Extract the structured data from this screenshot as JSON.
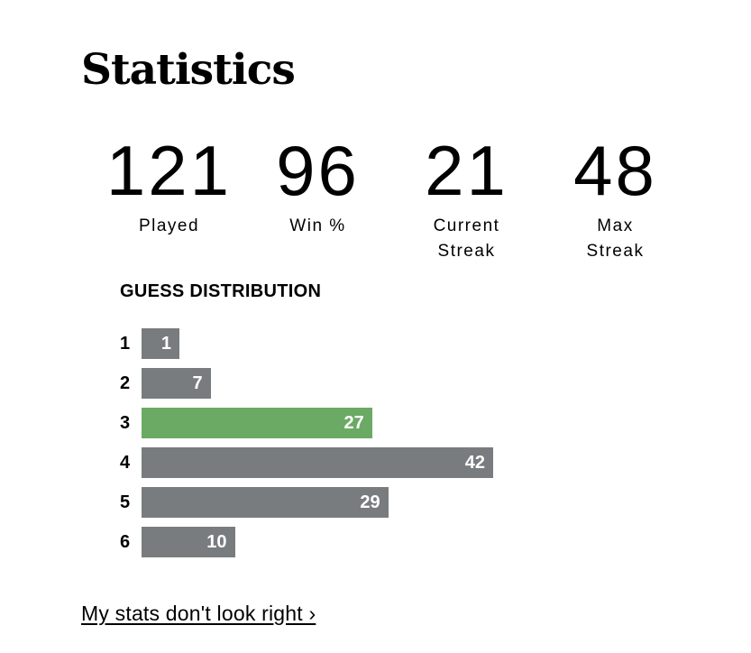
{
  "page": {
    "title": "Statistics",
    "background": "#ffffff"
  },
  "stats": {
    "items": [
      {
        "value": "121",
        "label": "Played"
      },
      {
        "value": "96",
        "label": "Win %"
      },
      {
        "value": "21",
        "label": "Current\nStreak"
      },
      {
        "value": "48",
        "label": "Max\nStreak"
      }
    ]
  },
  "distribution": {
    "heading": "GUESS DISTRIBUTION"
  },
  "footer": {
    "link_label": "My stats don't look right ›"
  },
  "chart_data": {
    "type": "bar",
    "orientation": "horizontal",
    "title": "GUESS DISTRIBUTION",
    "categories": [
      "1",
      "2",
      "3",
      "4",
      "5",
      "6"
    ],
    "values": [
      1,
      7,
      27,
      42,
      29,
      10
    ],
    "xlim": [
      0,
      42
    ],
    "highlight_category": "3",
    "bar_color": "#787c7e",
    "highlight_color": "#6aaa64",
    "value_label_color": "#ffffff",
    "legend": "none",
    "grid": false
  },
  "colors": {
    "green": "#6aaa64",
    "gray": "#787c7e",
    "text": "#000000"
  }
}
